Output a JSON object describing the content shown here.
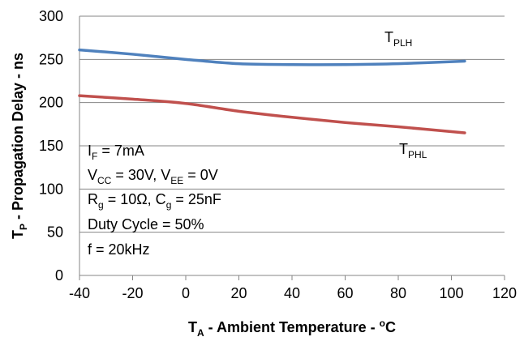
{
  "chart_data": {
    "type": "line",
    "x_axis": {
      "min": -40,
      "max": 120,
      "ticks": [
        "-40",
        "-20",
        "0",
        "20",
        "40",
        "60",
        "80",
        "100",
        "120"
      ],
      "title": {
        "main": "T",
        "sub": "A",
        "rest": " - Ambient Temperature - ",
        "sup": "o",
        "unit": "C"
      }
    },
    "y_axis": {
      "min": 0,
      "max": 300,
      "ticks": [
        "0",
        "50",
        "100",
        "150",
        "200",
        "250",
        "300"
      ],
      "title": {
        "main": "T",
        "sub": "P",
        "rest": " - Propagation Delay - ns"
      }
    },
    "grid": {
      "horizontal": true,
      "vertical": false
    },
    "series": [
      {
        "label_main": "T",
        "label_sub": "PLH",
        "color": "#4f81bd",
        "x": [
          -40,
          -20,
          0,
          20,
          40,
          60,
          80,
          105
        ],
        "y": [
          261,
          256,
          250,
          245,
          244,
          244,
          245,
          248
        ]
      },
      {
        "label_main": "T",
        "label_sub": "PHL",
        "color": "#c0504d",
        "x": [
          -40,
          -20,
          0,
          20,
          40,
          60,
          80,
          105
        ],
        "y": [
          208,
          204,
          199,
          190,
          183,
          177,
          172,
          165
        ]
      }
    ],
    "conditions": [
      {
        "main": "I",
        "sub": "F",
        "rest": " = 7mA"
      },
      {
        "main": "V",
        "sub": "CC",
        "rest": " = 30V, V",
        "sub2": "EE",
        "rest2": " = 0V"
      },
      {
        "main": "R",
        "sub": "g",
        "rest": " = 10Ω, C",
        "sub2": "g",
        "rest2": " = 25nF"
      },
      {
        "main": "Duty Cycle = 50%"
      },
      {
        "main": "f = 20kHz"
      }
    ]
  }
}
